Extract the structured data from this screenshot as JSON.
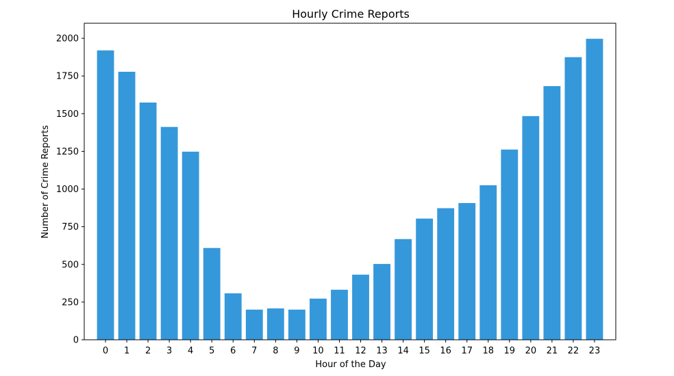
{
  "chart_data": {
    "type": "bar",
    "title": "Hourly Crime Reports",
    "xlabel": "Hour of the Day",
    "ylabel": "Number of Crime Reports",
    "categories": [
      "0",
      "1",
      "2",
      "3",
      "4",
      "5",
      "6",
      "7",
      "8",
      "9",
      "10",
      "11",
      "12",
      "13",
      "14",
      "15",
      "16",
      "17",
      "18",
      "19",
      "20",
      "21",
      "22",
      "23"
    ],
    "values": [
      1920,
      1778,
      1574,
      1412,
      1248,
      609,
      308,
      200,
      208,
      200,
      273,
      332,
      432,
      503,
      668,
      804,
      873,
      907,
      1025,
      1262,
      1484,
      1683,
      1875,
      1997
    ],
    "ylim": [
      0,
      2100
    ],
    "yticks": [
      0,
      250,
      500,
      750,
      1000,
      1250,
      1500,
      1750,
      2000
    ],
    "bar_color": "#3598db",
    "grid": false,
    "legend": "none"
  }
}
